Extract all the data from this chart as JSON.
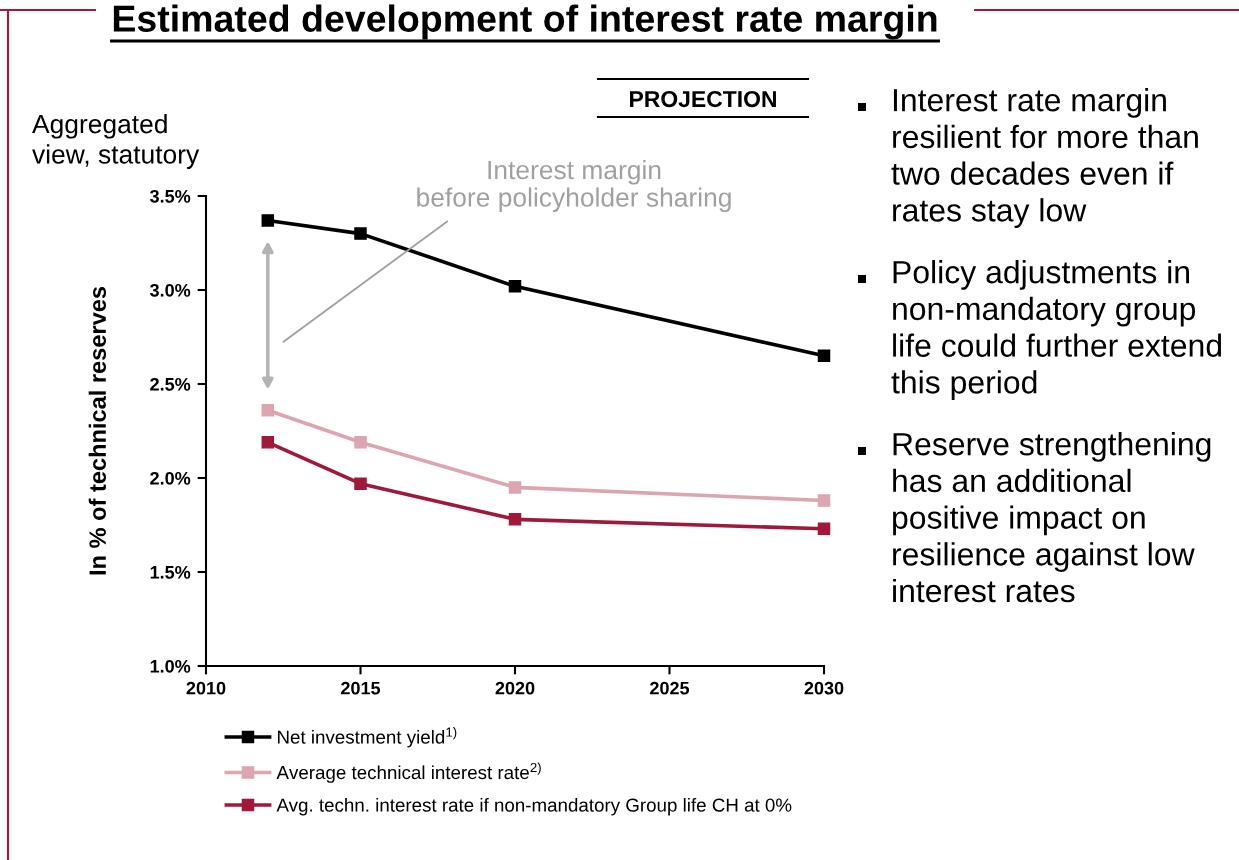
{
  "chart_data": {
    "type": "line",
    "title": "Estimated development of interest rate margin",
    "subtitle": "Aggregated\nview, statutory",
    "ylabel": "In % of technical reserves",
    "x": [
      2012,
      2015,
      2020,
      2030
    ],
    "series": [
      {
        "name": "Net investment yield$^{1)}$",
        "color": "#000000",
        "values": [
          3.37,
          3.3,
          3.02,
          2.65
        ]
      },
      {
        "name": "Average technical interest rate$^{2)}$",
        "color": "#dca5af",
        "values": [
          2.36,
          2.19,
          1.95,
          1.88
        ]
      },
      {
        "name": "Avg. techn. interest rate if non-mandatory Group life CH at 0%",
        "color": "#a0193a",
        "values": [
          2.19,
          1.97,
          1.78,
          1.73
        ]
      }
    ],
    "xlim": [
      2010,
      2030
    ],
    "xticks": [
      2010,
      2015,
      2020,
      2025,
      2030
    ],
    "ylim": [
      1.0,
      3.5
    ],
    "yticks": [
      {
        "value": 1.0,
        "label": "1.0%"
      },
      {
        "value": 1.5,
        "label": "1.5%"
      },
      {
        "value": 2.0,
        "label": "2.0%"
      },
      {
        "value": 2.5,
        "label": "2.5%"
      },
      {
        "value": 3.0,
        "label": "3.0%"
      },
      {
        "value": 3.5,
        "label": "3.5%"
      }
    ],
    "marker": "square",
    "line_style": "solid",
    "legend": "bottom",
    "annotations": [
      "Interest margin\nbefore policyholder sharing",
      "PROJECTION",
      "Interest rate margin\nresilient for more than\ntwo decades even if\nrates stay low",
      "Policy adjustments in\nnon-mandatory group\nlife could further extend\nthis period",
      "Reserve strengthening\nhas an additional\npositive impact on\nresilience against low\ninterest rates"
    ]
  }
}
